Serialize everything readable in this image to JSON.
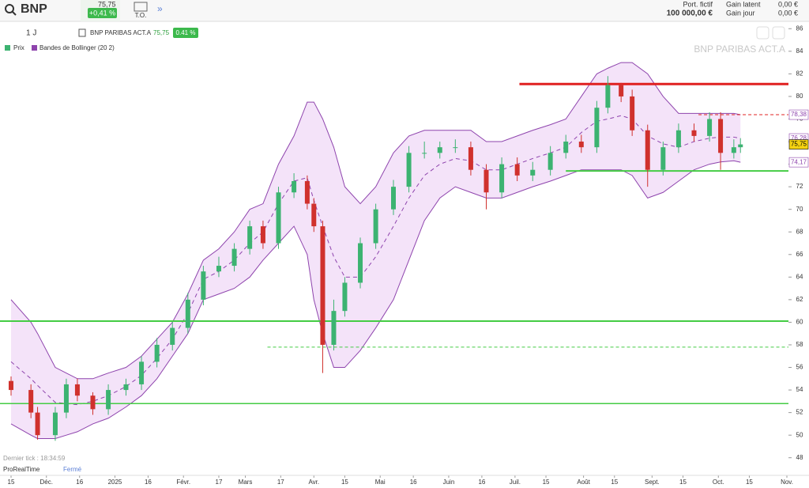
{
  "header": {
    "symbol": "BNP",
    "price": "75,75",
    "change": "+0,41 %",
    "to": "T.O.",
    "portfolio_label": "Port. fictif",
    "portfolio_value": "100 000,00 €",
    "gain_latent_label": "Gain latent",
    "gain_latent_value": "0,00 €",
    "gain_jour_label": "Gain jour",
    "gain_jour_value": "0,00 €"
  },
  "toolbar": {
    "period": "1 J",
    "instrument": "BNP PARIBAS ACT.A",
    "price": "75,75",
    "change": "0.41 %"
  },
  "footer": {
    "last_tick": "Dernier tick : 18:34:59",
    "brand": "ProRealTime",
    "status": "Fermé"
  },
  "chart_data": {
    "type": "candlestick",
    "title": "BNP PARIBAS ACT.A",
    "price_name": "Prix",
    "up_color": "#3cb371",
    "down_color": "#d0312d",
    "x": [
      0,
      9,
      12,
      20,
      25,
      30,
      37,
      44,
      52,
      59,
      66,
      73,
      80,
      87,
      94,
      101,
      108,
      114,
      121,
      128,
      134,
      137,
      141,
      146,
      151,
      158,
      165,
      173,
      180,
      187,
      194,
      201,
      208,
      215,
      222,
      229,
      236,
      244,
      251,
      258,
      265,
      270,
      276,
      281,
      288,
      295,
      302,
      309,
      316,
      321,
      327,
      330
    ],
    "open": [
      54.8,
      54,
      52,
      50,
      52,
      54.5,
      53.5,
      52.3,
      54,
      54.5,
      56.5,
      58,
      59.5,
      62,
      64.5,
      65,
      66.5,
      68.5,
      67,
      71.5,
      72.5,
      70.5,
      68.5,
      58,
      61,
      63.5,
      67,
      70,
      72,
      75,
      75,
      75.5,
      75.5,
      73.5,
      71.5,
      74,
      73,
      73.5,
      75,
      76,
      75.5,
      79,
      81,
      80,
      77,
      73.5,
      75.5,
      77,
      76.5,
      78,
      75,
      75.5
    ],
    "high": [
      55.2,
      54.5,
      52.5,
      52.5,
      55,
      55,
      53.8,
      54.5,
      55,
      57,
      58.6,
      60,
      62.6,
      65,
      65.8,
      67,
      69,
      69,
      72,
      73.2,
      73,
      71,
      69,
      62,
      64,
      67.5,
      70.5,
      72.6,
      75.6,
      76,
      76,
      76.2,
      76,
      74,
      74.6,
      74.6,
      74.2,
      75.6,
      76.6,
      76.6,
      79.6,
      81.8,
      81.2,
      80.6,
      77.5,
      76,
      77.6,
      77.6,
      78.6,
      78.6,
      76.2,
      76.3
    ],
    "low": [
      53.5,
      51.5,
      49.6,
      49.5,
      51.5,
      53,
      51.8,
      51.8,
      53.5,
      54,
      56,
      57.5,
      59,
      61.5,
      64,
      64.5,
      66,
      66.5,
      66.5,
      71,
      70,
      68,
      55.5,
      57.5,
      60.5,
      63,
      66.5,
      69.5,
      71.5,
      74.5,
      74.5,
      75,
      73,
      70,
      71,
      72.5,
      72.5,
      73,
      74.5,
      75,
      75,
      78.5,
      79.5,
      76.5,
      72,
      73,
      75,
      76,
      76,
      73.5,
      74.5,
      75
    ],
    "close": [
      54,
      52,
      50,
      52,
      54.5,
      53.5,
      52.3,
      54,
      54.5,
      56.5,
      58,
      59.5,
      62,
      64.5,
      65,
      66.5,
      68.5,
      67,
      71.5,
      72.5,
      70.5,
      68.5,
      58,
      61,
      63.5,
      67,
      70,
      72,
      75,
      75,
      75.5,
      75.5,
      73.5,
      71.5,
      74,
      73,
      73.5,
      75,
      76,
      75.5,
      79,
      81,
      80,
      77,
      73.5,
      75.5,
      77,
      76.5,
      78,
      75,
      75.5,
      75.75
    ],
    "bands": {
      "name": "Bandes de Bollinger (20 2)",
      "color": "#8e44ad",
      "fill": "#f1dcf7",
      "upper": [
        62,
        60,
        59,
        56,
        55.5,
        55,
        55,
        55.5,
        56,
        57,
        58.5,
        60,
        62.5,
        65.5,
        66.5,
        68,
        70,
        70.5,
        74,
        76.5,
        79.5,
        79.5,
        78,
        75.5,
        72,
        70.5,
        72,
        75,
        76.5,
        77,
        77,
        77,
        77,
        76,
        76,
        76.5,
        77,
        77.5,
        78,
        80,
        82,
        82.5,
        83,
        83,
        82,
        80,
        78.5,
        78.5,
        78.5,
        78.5,
        78.5,
        78.38
      ],
      "middle": [
        56.5,
        55,
        54.4,
        52.9,
        52.8,
        52.7,
        53,
        53.5,
        54.3,
        55.3,
        56.8,
        58.5,
        60.8,
        63.8,
        64.5,
        65.5,
        67,
        68,
        70.5,
        72.5,
        72.8,
        70.8,
        68.5,
        65.8,
        64,
        64,
        65.8,
        68.5,
        71,
        73,
        74,
        74.5,
        74.3,
        73.5,
        73.5,
        74,
        74.5,
        75,
        75.5,
        76.8,
        77.8,
        78,
        78.3,
        78,
        76.5,
        75.8,
        75.5,
        76,
        76.3,
        76.4,
        76.4,
        76.28
      ],
      "lower": [
        51,
        50,
        49.7,
        49.7,
        50,
        50.3,
        51,
        51.5,
        52.5,
        53.5,
        55,
        57,
        59,
        62,
        62.5,
        63,
        64,
        65.5,
        67,
        68.5,
        66,
        62,
        59,
        56,
        56,
        57.5,
        59.5,
        62,
        65.5,
        69,
        71,
        72,
        71.5,
        71,
        71,
        71.5,
        72,
        72.5,
        73,
        73.5,
        73.5,
        73.5,
        73.5,
        73,
        71,
        71.5,
        72.5,
        73.5,
        74,
        74.2,
        74.3,
        74.17
      ]
    },
    "levels": [
      {
        "value": 81.1,
        "from": 230,
        "color": "#e02020",
        "style": "solid",
        "width": 3
      },
      {
        "value": 73.4,
        "from": 251,
        "color": "#44cc44",
        "style": "solid",
        "width": 2
      },
      {
        "value": 60.1,
        "from": -5,
        "color": "#44cc44",
        "style": "solid",
        "width": 2
      },
      {
        "value": 52.8,
        "from": -5,
        "color": "#44cc44",
        "style": "solid",
        "width": 1.5
      },
      {
        "value": 57.8,
        "from": 116,
        "color": "#44cc44",
        "style": "dashed",
        "width": 1
      },
      {
        "value": 78.38,
        "from": 311,
        "color": "#e02020",
        "style": "dashed",
        "width": 1
      }
    ],
    "price_tags": [
      {
        "value": 78.38,
        "label": "78,38",
        "color": "#8e44ad",
        "bg": "#ffffff"
      },
      {
        "value": 76.28,
        "label": "76,28",
        "color": "#8e44ad",
        "bg": "#ffffff"
      },
      {
        "value": 75.75,
        "label": "75,75",
        "color": "#000000",
        "bg": "#f5d312"
      },
      {
        "value": 74.17,
        "label": "74,17",
        "color": "#8e44ad",
        "bg": "#ffffff"
      }
    ],
    "xlim": [
      -5,
      351
    ],
    "ylim": [
      47,
      87
    ],
    "yticks": [
      48,
      50,
      52,
      54,
      56,
      58,
      60,
      62,
      64,
      66,
      68,
      70,
      72,
      74,
      76,
      78,
      80,
      82,
      84,
      86
    ],
    "xticks": [
      {
        "value": 0,
        "label": "15"
      },
      {
        "value": 16,
        "label": "Déc."
      },
      {
        "value": 31,
        "label": "16"
      },
      {
        "value": 47,
        "label": "2025"
      },
      {
        "value": 62,
        "label": "16"
      },
      {
        "value": 78,
        "label": "Févr."
      },
      {
        "value": 94,
        "label": "17"
      },
      {
        "value": 106,
        "label": "Mars"
      },
      {
        "value": 122,
        "label": "17"
      },
      {
        "value": 137,
        "label": "Avr."
      },
      {
        "value": 151,
        "label": "15"
      },
      {
        "value": 167,
        "label": "Mai"
      },
      {
        "value": 182,
        "label": "16"
      },
      {
        "value": 198,
        "label": "Juin"
      },
      {
        "value": 213,
        "label": "16"
      },
      {
        "value": 228,
        "label": "Juil."
      },
      {
        "value": 242,
        "label": "15"
      },
      {
        "value": 259,
        "label": "Août"
      },
      {
        "value": 273,
        "label": "15"
      },
      {
        "value": 290,
        "label": "Sept."
      },
      {
        "value": 304,
        "label": "15"
      },
      {
        "value": 320,
        "label": "Oct."
      },
      {
        "value": 334,
        "label": "15"
      },
      {
        "value": 351,
        "label": "Nov."
      }
    ]
  }
}
